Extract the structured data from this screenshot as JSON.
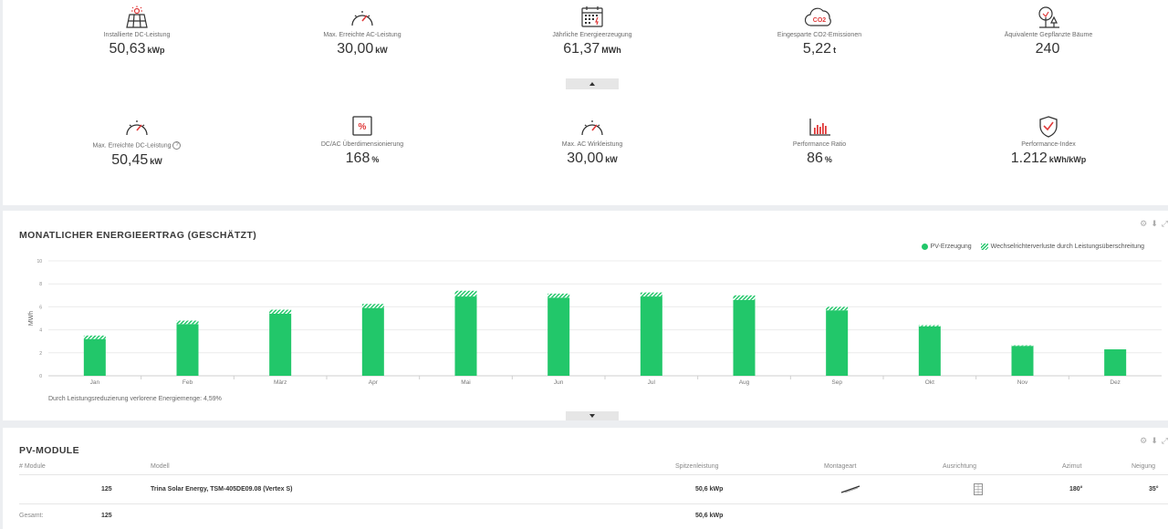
{
  "kpis_top": [
    {
      "icon": "solar-panel-icon",
      "label": "Installierte DC-Leistung",
      "value": "50,63",
      "unit": "kWp"
    },
    {
      "icon": "gauge-icon",
      "label": "Max. Erreichte AC-Leistung",
      "value": "30,00",
      "unit": "kW"
    },
    {
      "icon": "calendar-icon",
      "label": "Jährliche Energieerzeugung",
      "value": "61,37",
      "unit": "MWh"
    },
    {
      "icon": "co2-cloud-icon",
      "label": "Eingesparte CO2-Emissionen",
      "value": "5,22",
      "unit": "t"
    },
    {
      "icon": "tree-icon",
      "label": "Äquivalente Gepflanzte Bäume",
      "value": "240",
      "unit": ""
    }
  ],
  "kpis_bottom": [
    {
      "icon": "gauge-icon",
      "label": "Max. Erreichte DC-Leistung",
      "value": "50,45",
      "unit": "kW"
    },
    {
      "icon": "percent-icon",
      "label": "DC/AC Überdimensionierung",
      "value": "168",
      "unit": "%"
    },
    {
      "icon": "gauge-icon",
      "label": "Max. AC Wirkleistung",
      "value": "30,00",
      "unit": "kW"
    },
    {
      "icon": "bar-chart-icon",
      "label": "Performance Ratio",
      "value": "86",
      "unit": "%"
    },
    {
      "icon": "shield-check-icon",
      "label": "Performance-Index",
      "value": "1.212",
      "unit": "kWh/kWp"
    }
  ],
  "info_mark": "?",
  "chart_panel": {
    "title": "MONATLICHER ENERGIEERTRAG (GESCHÄTZT)",
    "footnote": "Durch Leistungsreduzierung verlorene Energiemenge: 4,59%"
  },
  "chart_data": {
    "type": "bar",
    "stacked": true,
    "categories": [
      "Jan",
      "Feb",
      "März",
      "Apr",
      "Mai",
      "Jun",
      "Jul",
      "Aug",
      "Sep",
      "Okt",
      "Nov",
      "Dez"
    ],
    "series": [
      {
        "name": "PV-Erzeugung",
        "color": "#22c76a",
        "values": [
          3.2,
          4.5,
          5.4,
          5.9,
          6.9,
          6.8,
          6.9,
          6.6,
          5.7,
          4.3,
          2.6,
          2.3
        ]
      },
      {
        "name": "Wechselrichterverluste durch Leistungsüberschreitung",
        "pattern": "hatched",
        "color": "#22c76a",
        "values": [
          0.3,
          0.3,
          0.35,
          0.35,
          0.5,
          0.35,
          0.35,
          0.4,
          0.3,
          0.1,
          0.05,
          0.0
        ]
      }
    ],
    "ylabel": "MWh",
    "ylim": [
      0,
      10
    ],
    "yticks": [
      0,
      2,
      4,
      6,
      8,
      10
    ],
    "grid": true,
    "legend": "top-right"
  },
  "modules": {
    "title": "PV-MODULE",
    "headers": {
      "count": "# Module",
      "model": "Modell",
      "peak": "Spitzenleistung",
      "mount": "Montageart",
      "orientation": "Ausrichtung",
      "azimuth": "Azimut",
      "tilt": "Neigung"
    },
    "rows": [
      {
        "count": "125",
        "model": "Trina Solar Energy, TSM-405DE09.08 (Vertex S)",
        "peak": "50,6 kWp",
        "azimuth": "180°",
        "tilt": "35°"
      }
    ],
    "total": {
      "label": "Gesamt:",
      "count": "125",
      "peak": "50,6 kWp"
    }
  },
  "tools": [
    "⚙",
    "⬇",
    "⤢"
  ]
}
